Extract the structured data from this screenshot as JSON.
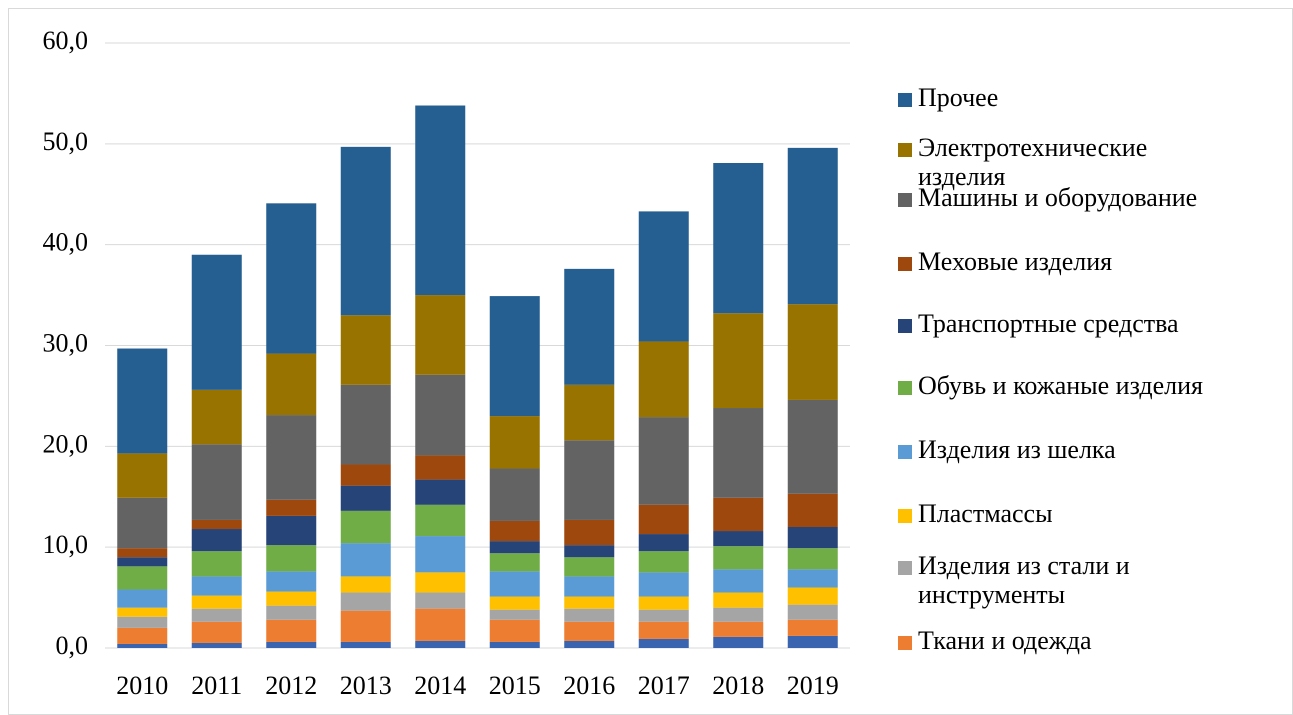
{
  "chart_data": {
    "type": "stacked_bar",
    "categories": [
      "2010",
      "2011",
      "2012",
      "2013",
      "2014",
      "2015",
      "2016",
      "2017",
      "2018",
      "2019"
    ],
    "ylim": [
      0,
      60
    ],
    "yticks": [
      {
        "value": 0,
        "label": "0,0"
      },
      {
        "value": 10,
        "label": "10,0"
      },
      {
        "value": 20,
        "label": "20,0"
      },
      {
        "value": 30,
        "label": "30,0"
      },
      {
        "value": 40,
        "label": "40,0"
      },
      {
        "value": 50,
        "label": "50,0"
      },
      {
        "value": 60,
        "label": "60,0"
      }
    ],
    "grid": true,
    "legend": "right",
    "series": [
      {
        "color": "#3a64b0",
        "values": [
          0.4,
          0.5,
          0.6,
          0.6,
          0.7,
          0.6,
          0.7,
          0.9,
          1.1,
          1.2
        ]
      },
      {
        "name": "Ткани и одежда",
        "color": "#ed7d31",
        "values": [
          1.6,
          2.1,
          2.2,
          3.1,
          3.2,
          2.2,
          1.9,
          1.7,
          1.5,
          1.6
        ]
      },
      {
        "name": "Изделия из стали и инструменты",
        "color": "#a5a5a5",
        "values": [
          1.1,
          1.3,
          1.4,
          1.8,
          1.6,
          1.0,
          1.3,
          1.2,
          1.4,
          1.5
        ]
      },
      {
        "name": "Пластмассы",
        "color": "#ffc000",
        "values": [
          0.9,
          1.3,
          1.4,
          1.6,
          2.0,
          1.3,
          1.2,
          1.3,
          1.5,
          1.7
        ]
      },
      {
        "name": "Изделия из шелка",
        "color": "#5b9bd5",
        "values": [
          1.8,
          1.9,
          2.0,
          3.3,
          3.6,
          2.5,
          2.0,
          2.4,
          2.3,
          1.8
        ]
      },
      {
        "name": "Обувь и кожаные изделия",
        "color": "#70ad47",
        "values": [
          2.3,
          2.5,
          2.6,
          3.2,
          3.1,
          1.8,
          1.9,
          2.1,
          2.3,
          2.1
        ]
      },
      {
        "name": "Транспортные средства",
        "color": "#264478",
        "values": [
          0.9,
          2.2,
          2.9,
          2.5,
          2.5,
          1.2,
          1.2,
          1.7,
          1.5,
          2.1
        ]
      },
      {
        "name": "Меховые изделия",
        "color": "#9e480e",
        "values": [
          0.9,
          0.9,
          1.6,
          2.1,
          2.4,
          2.0,
          2.5,
          2.9,
          3.3,
          3.3
        ]
      },
      {
        "name": "Машины и оборудование",
        "color": "#636363",
        "values": [
          5.0,
          7.5,
          8.4,
          7.9,
          8.0,
          5.2,
          7.9,
          8.7,
          8.9,
          9.3
        ]
      },
      {
        "name": "Электротехнические изделия",
        "color": "#997300",
        "values": [
          4.4,
          5.4,
          6.1,
          6.9,
          7.9,
          5.2,
          5.5,
          7.5,
          9.4,
          9.5
        ]
      },
      {
        "name": "Прочее",
        "color": "#255e91",
        "values": [
          10.4,
          13.4,
          14.9,
          16.7,
          18.8,
          11.9,
          11.5,
          12.9,
          14.9,
          15.5
        ]
      }
    ]
  }
}
